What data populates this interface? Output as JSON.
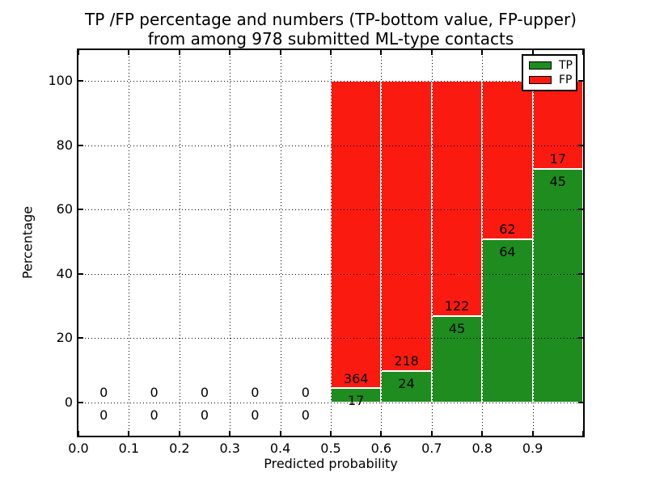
{
  "title": {
    "line1": "TP /FP percentage and numbers (TP-bottom value, FP-upper)",
    "line2": "from among 978 submitted ML-type contacts"
  },
  "axes": {
    "ylabel": "Percentage",
    "xlabel": "Predicted probability",
    "yticks": [
      "0",
      "20",
      "40",
      "60",
      "80",
      "100"
    ],
    "ytick_values": [
      0,
      20,
      40,
      60,
      80,
      100
    ],
    "xticks": [
      "0.0",
      "0.1",
      "0.2",
      "0.3",
      "0.4",
      "0.5",
      "0.6",
      "0.7",
      "0.8",
      "0.9"
    ],
    "xtick_values": [
      0.0,
      0.1,
      0.2,
      0.3,
      0.4,
      0.5,
      0.6,
      0.7,
      0.8,
      0.9
    ]
  },
  "chart_data": {
    "type": "bar",
    "stacked": true,
    "normalized_to_percent": true,
    "title": "TP /FP percentage and numbers (TP-bottom value, FP-upper) from among 978 submitted ML-type contacts",
    "xlabel": "Predicted probability",
    "ylabel": "Percentage",
    "xlim": [
      0.0,
      1.0
    ],
    "ylim": [
      -10.3,
      109.5
    ],
    "bin_width": 0.1,
    "categories": [
      "0.0-0.1",
      "0.1-0.2",
      "0.2-0.3",
      "0.3-0.4",
      "0.4-0.5",
      "0.5-0.6",
      "0.6-0.7",
      "0.7-0.8",
      "0.8-0.9",
      "0.9-1.0"
    ],
    "series": [
      {
        "name": "TP",
        "color": "#1e8c1e",
        "counts": [
          0,
          0,
          0,
          0,
          0,
          17,
          24,
          45,
          64,
          45
        ]
      },
      {
        "name": "FP",
        "color": "#fb1a10",
        "counts": [
          0,
          0,
          0,
          0,
          0,
          364,
          218,
          122,
          62,
          17
        ]
      }
    ],
    "tp_percent_of_bin": [
      0,
      0,
      0,
      0,
      0,
      4.46,
      9.92,
      26.95,
      50.79,
      72.58
    ],
    "total_contacts": 978,
    "grid": "dotted, drawn above bars",
    "legend_position": "upper right"
  }
}
